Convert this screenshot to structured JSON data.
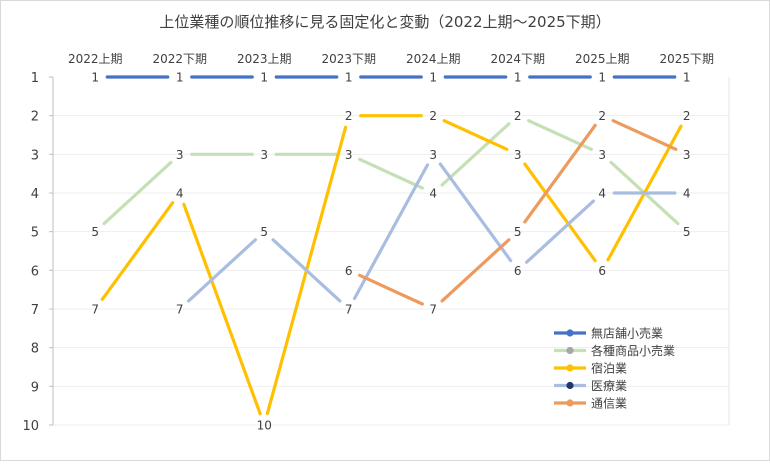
{
  "chart_data": {
    "type": "line",
    "title": "上位業種の順位推移に見る固定化と変動（2022上期～2025下期）",
    "categories": [
      "2022上期",
      "2022下期",
      "2023上期",
      "2023下期",
      "2024上期",
      "2024下期",
      "2025上期",
      "2025下期"
    ],
    "y_ticks": [
      "1",
      "2",
      "3",
      "4",
      "5",
      "6",
      "7",
      "8",
      "9",
      "10"
    ],
    "ylim": [
      1,
      10
    ],
    "y_reversed": true,
    "legend_position": "bottom-right",
    "series": [
      {
        "name": "無店舗小売業",
        "color": "#4472c4",
        "values": [
          1,
          1,
          1,
          1,
          1,
          1,
          1,
          1
        ],
        "labels": [
          "1",
          "1",
          "1",
          "1",
          "1",
          "1",
          "1",
          "1"
        ]
      },
      {
        "name": "各種商品小売業",
        "color": "#c5e0b4",
        "values": [
          5,
          3,
          3,
          3,
          4,
          2,
          3,
          5
        ],
        "labels": [
          "5",
          "3",
          "3",
          "3",
          "4",
          "2",
          "3",
          "5"
        ]
      },
      {
        "name": "宿泊業",
        "color": "#ffc000",
        "values": [
          7,
          4,
          10,
          2,
          2,
          3,
          6,
          2
        ],
        "labels": [
          "7",
          "4",
          "10",
          "2",
          "2",
          "3",
          "6",
          "2"
        ]
      },
      {
        "name": "医療業",
        "color": "#a9bde0",
        "values": [
          null,
          7,
          5,
          7,
          3,
          6,
          4,
          4
        ],
        "labels": [
          "",
          "7",
          "5",
          "7",
          "3",
          "6",
          "4",
          "4"
        ]
      },
      {
        "name": "通信業",
        "color": "#ed9a5e",
        "values": [
          null,
          null,
          null,
          6,
          7,
          5,
          2,
          3
        ],
        "labels": [
          "",
          "",
          "",
          "6",
          "7",
          "5",
          "2",
          "3"
        ]
      }
    ],
    "legend_marker_colors": [
      "#4472c4",
      "#a6a6a6",
      "#ffc000",
      "#1f3864",
      "#ed9a5e"
    ]
  }
}
